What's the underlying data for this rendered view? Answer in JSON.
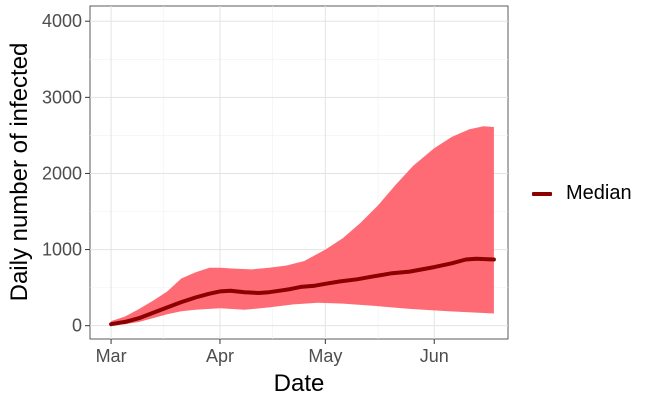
{
  "chart_data": {
    "type": "line",
    "xlabel": "Date",
    "ylabel": "Daily number of infected",
    "x_ticks": [
      "Mar",
      "Apr",
      "May",
      "Jun"
    ],
    "x_tick_dates": [
      "2020-03-01",
      "2020-04-01",
      "2020-05-01",
      "2020-06-01"
    ],
    "y_ticks": [
      0,
      1000,
      2000,
      3000,
      4000
    ],
    "xlim": [
      "2020-02-24",
      "2020-06-22"
    ],
    "ylim": [
      -175,
      4200
    ],
    "grid": true,
    "legend_position": "right",
    "band_color": "#ff6b75",
    "line_color": "#8b0000",
    "series": [
      {
        "name": "Median",
        "type": "line",
        "points": [
          [
            "2020-03-01",
            20
          ],
          [
            "2020-03-05",
            50
          ],
          [
            "2020-03-09",
            100
          ],
          [
            "2020-03-13",
            170
          ],
          [
            "2020-03-17",
            240
          ],
          [
            "2020-03-21",
            310
          ],
          [
            "2020-03-25",
            370
          ],
          [
            "2020-03-29",
            420
          ],
          [
            "2020-04-01",
            450
          ],
          [
            "2020-04-04",
            460
          ],
          [
            "2020-04-08",
            440
          ],
          [
            "2020-04-12",
            430
          ],
          [
            "2020-04-15",
            440
          ],
          [
            "2020-04-18",
            460
          ],
          [
            "2020-04-21",
            480
          ],
          [
            "2020-04-24",
            510
          ],
          [
            "2020-04-28",
            525
          ],
          [
            "2020-05-01",
            550
          ],
          [
            "2020-05-05",
            580
          ],
          [
            "2020-05-10",
            610
          ],
          [
            "2020-05-15",
            650
          ],
          [
            "2020-05-20",
            690
          ],
          [
            "2020-05-25",
            710
          ],
          [
            "2020-06-01",
            770
          ],
          [
            "2020-06-06",
            820
          ],
          [
            "2020-06-10",
            870
          ],
          [
            "2020-06-13",
            880
          ],
          [
            "2020-06-18",
            870
          ]
        ]
      },
      {
        "type": "band",
        "upper": [
          [
            "2020-03-01",
            60
          ],
          [
            "2020-03-05",
            120
          ],
          [
            "2020-03-09",
            220
          ],
          [
            "2020-03-13",
            330
          ],
          [
            "2020-03-17",
            450
          ],
          [
            "2020-03-21",
            620
          ],
          [
            "2020-03-25",
            700
          ],
          [
            "2020-03-29",
            760
          ],
          [
            "2020-04-01",
            760
          ],
          [
            "2020-04-05",
            750
          ],
          [
            "2020-04-10",
            740
          ],
          [
            "2020-04-15",
            760
          ],
          [
            "2020-04-20",
            790
          ],
          [
            "2020-04-25",
            850
          ],
          [
            "2020-05-01",
            1000
          ],
          [
            "2020-05-06",
            1150
          ],
          [
            "2020-05-11",
            1350
          ],
          [
            "2020-05-16",
            1580
          ],
          [
            "2020-05-21",
            1850
          ],
          [
            "2020-05-26",
            2100
          ],
          [
            "2020-06-01",
            2330
          ],
          [
            "2020-06-06",
            2480
          ],
          [
            "2020-06-11",
            2580
          ],
          [
            "2020-06-15",
            2620
          ],
          [
            "2020-06-18",
            2610
          ]
        ],
        "lower": [
          [
            "2020-03-01",
            10
          ],
          [
            "2020-03-05",
            20
          ],
          [
            "2020-03-09",
            50
          ],
          [
            "2020-03-13",
            100
          ],
          [
            "2020-03-17",
            150
          ],
          [
            "2020-03-21",
            190
          ],
          [
            "2020-03-25",
            210
          ],
          [
            "2020-04-01",
            230
          ],
          [
            "2020-04-08",
            210
          ],
          [
            "2020-04-15",
            240
          ],
          [
            "2020-04-22",
            280
          ],
          [
            "2020-04-29",
            300
          ],
          [
            "2020-05-06",
            290
          ],
          [
            "2020-05-15",
            260
          ],
          [
            "2020-05-25",
            220
          ],
          [
            "2020-06-05",
            190
          ],
          [
            "2020-06-18",
            160
          ]
        ]
      }
    ]
  }
}
